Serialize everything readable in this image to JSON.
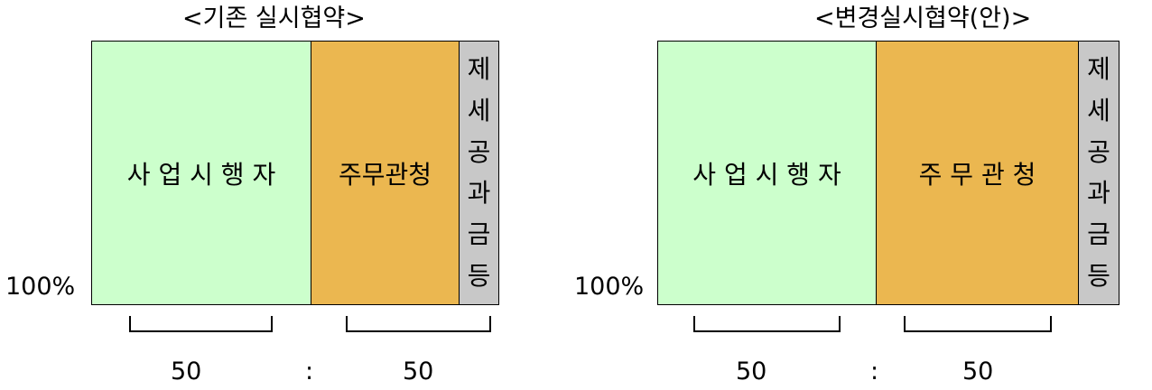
{
  "left": {
    "title": "<기존 실시협약>",
    "segments": [
      {
        "label": "사 업 시 행 자",
        "color": "#ccffcc"
      },
      {
        "label": "주무관청",
        "color": "#ebb750"
      },
      {
        "label_chars": [
          "제",
          "세",
          "공",
          "과",
          "금",
          "등"
        ],
        "color": "#c8c8c8"
      }
    ],
    "percent_label": "100%",
    "ratio": {
      "left": "50",
      "sep": ":",
      "right": "50"
    }
  },
  "right": {
    "title": "<변경실시협약(안)>",
    "segments": [
      {
        "label": "사 업 시 행 자",
        "color": "#ccffcc"
      },
      {
        "label": "주 무 관 청",
        "color": "#ebb750"
      },
      {
        "label_chars": [
          "제",
          "세",
          "공",
          "과",
          "금",
          "등"
        ],
        "color": "#c8c8c8"
      }
    ],
    "percent_label": "100%",
    "ratio": {
      "left": "50",
      "sep": ":",
      "right": "50"
    }
  }
}
